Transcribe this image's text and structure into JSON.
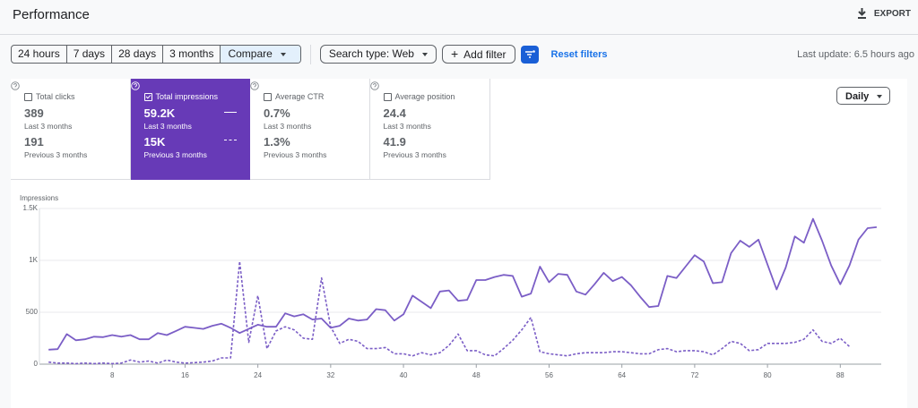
{
  "header": {
    "title": "Performance",
    "export": "EXPORT"
  },
  "toolbar": {
    "date_ranges": [
      "24 hours",
      "7 days",
      "28 days",
      "3 months"
    ],
    "compare": "Compare",
    "search_type": "Search type: Web",
    "add_filter": "Add filter",
    "reset_filters": "Reset filters",
    "last_update": "Last update: 6.5 hours ago"
  },
  "metrics": [
    {
      "label": "Total clicks",
      "current": "389",
      "current_period": "Last 3 months",
      "previous": "191",
      "previous_period": "Previous 3 months",
      "selected": false
    },
    {
      "label": "Total impressions",
      "current": "59.2K",
      "current_period": "Last 3 months",
      "previous": "15K",
      "previous_period": "Previous 3 months",
      "selected": true
    },
    {
      "label": "Average CTR",
      "current": "0.7%",
      "current_period": "Last 3 months",
      "previous": "1.3%",
      "previous_period": "Previous 3 months",
      "selected": false
    },
    {
      "label": "Average position",
      "current": "24.4",
      "current_period": "Last 3 months",
      "previous": "41.9",
      "previous_period": "Previous 3 months",
      "selected": false
    }
  ],
  "granularity": "Daily",
  "chart_data": {
    "type": "line",
    "y_label": "Impressions",
    "x": [
      1,
      2,
      3,
      4,
      5,
      6,
      7,
      8,
      9,
      10,
      11,
      12,
      13,
      14,
      15,
      16,
      17,
      18,
      19,
      20,
      21,
      22,
      23,
      24,
      25,
      26,
      27,
      28,
      29,
      30,
      31,
      32,
      33,
      34,
      35,
      36,
      37,
      38,
      39,
      40,
      41,
      42,
      43,
      44,
      45,
      46,
      47,
      48,
      49,
      50,
      51,
      52,
      53,
      54,
      55,
      56,
      57,
      58,
      59,
      60,
      61,
      62,
      63,
      64,
      65,
      66,
      67,
      68,
      69,
      70,
      71,
      72,
      73,
      74,
      75,
      76,
      77,
      78,
      79,
      80,
      81,
      82,
      83,
      84,
      85,
      86,
      87,
      88,
      89,
      90,
      91,
      92
    ],
    "series": [
      {
        "color": "#7b5ec6",
        "dashed": false,
        "values": [
          140,
          145,
          290,
          230,
          240,
          265,
          260,
          280,
          265,
          280,
          240,
          240,
          300,
          280,
          320,
          360,
          350,
          340,
          370,
          390,
          350,
          300,
          340,
          380,
          360,
          360,
          490,
          460,
          480,
          430,
          440,
          350,
          370,
          440,
          420,
          430,
          530,
          520,
          420,
          480,
          660,
          600,
          540,
          700,
          710,
          610,
          620,
          810,
          810,
          840,
          860,
          850,
          650,
          680,
          940,
          790,
          870,
          860,
          700,
          670,
          770,
          880,
          800,
          840,
          760,
          650,
          550,
          560,
          850,
          830,
          940,
          1050,
          990,
          780,
          790,
          1070,
          1190,
          1130,
          1200,
          960,
          720,
          930,
          1230,
          1170,
          1400,
          1190,
          950,
          770,
          950,
          1200,
          1310,
          1320
        ]
      },
      {
        "color": "#7b5ec6",
        "dashed": true,
        "values": [
          20,
          10,
          10,
          5,
          10,
          5,
          10,
          5,
          10,
          40,
          20,
          30,
          10,
          40,
          20,
          10,
          15,
          20,
          30,
          60,
          60,
          990,
          210,
          660,
          150,
          320,
          360,
          330,
          250,
          240,
          830,
          360,
          200,
          240,
          220,
          150,
          150,
          160,
          100,
          100,
          80,
          110,
          90,
          110,
          180,
          290,
          130,
          130,
          90,
          80,
          150,
          230,
          330,
          450,
          120,
          100,
          90,
          80,
          100,
          110,
          110,
          110,
          120,
          120,
          110,
          100,
          100,
          140,
          150,
          120,
          130,
          130,
          120,
          90,
          150,
          220,
          200,
          130,
          140,
          200,
          200,
          200,
          210,
          240,
          330,
          220,
          200,
          250,
          170,
          null,
          null,
          null
        ]
      }
    ],
    "xlim": [
      0,
      92.5
    ],
    "xticks": [
      8,
      16,
      24,
      32,
      40,
      48,
      56,
      64,
      72,
      80,
      88
    ],
    "ylim": [
      0,
      1500
    ],
    "yticks": [
      0,
      500,
      {
        "value": 1000,
        "label": "1K"
      },
      {
        "value": 1500,
        "label": "1.5K"
      }
    ],
    "grid": true
  }
}
